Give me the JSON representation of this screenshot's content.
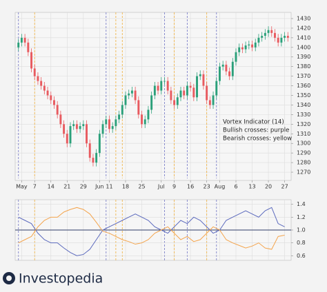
{
  "chart_data": [
    {
      "type": "candlestick",
      "annotation": [
        "Vortex Indicator (14)",
        "Bullish crosses: purple",
        "Bearish crosses: yellow"
      ],
      "x": [
        0,
        1,
        2,
        3,
        4,
        5,
        6,
        7,
        8,
        9,
        10,
        11,
        12,
        13,
        14,
        15,
        16,
        17,
        18,
        19,
        20,
        21,
        22,
        23,
        24,
        25,
        26,
        27,
        28,
        29,
        30,
        31,
        32,
        33,
        34,
        35,
        36,
        37,
        38,
        39,
        40,
        41,
        42,
        43,
        44,
        45,
        46,
        47,
        48,
        49,
        50,
        51,
        52,
        53,
        54,
        55,
        56,
        57,
        58,
        59,
        60,
        61,
        62,
        63,
        64,
        65,
        66,
        67,
        68,
        69,
        70,
        71,
        72,
        73,
        74,
        75,
        76,
        77,
        78,
        79,
        80,
        81,
        82,
        83
      ],
      "open": [
        1400,
        1405,
        1410,
        1405,
        1395,
        1378,
        1370,
        1365,
        1360,
        1355,
        1350,
        1345,
        1340,
        1330,
        1320,
        1310,
        1300,
        1318,
        1320,
        1315,
        1318,
        1320,
        1300,
        1285,
        1280,
        1290,
        1310,
        1320,
        1325,
        1315,
        1318,
        1325,
        1330,
        1340,
        1350,
        1352,
        1355,
        1345,
        1330,
        1320,
        1325,
        1335,
        1350,
        1360,
        1355,
        1365,
        1365,
        1355,
        1345,
        1340,
        1348,
        1355,
        1350,
        1360,
        1358,
        1348,
        1370,
        1372,
        1360,
        1345,
        1340,
        1350,
        1365,
        1380,
        1382,
        1375,
        1370,
        1385,
        1395,
        1400,
        1398,
        1402,
        1403,
        1400,
        1405,
        1410,
        1412,
        1415,
        1418,
        1415,
        1410,
        1405,
        1410,
        1412
      ],
      "high": [
        1409,
        1414,
        1414,
        1409,
        1399,
        1382,
        1374,
        1369,
        1364,
        1359,
        1354,
        1349,
        1344,
        1334,
        1324,
        1314,
        1322,
        1324,
        1324,
        1322,
        1324,
        1324,
        1304,
        1289,
        1294,
        1314,
        1324,
        1329,
        1329,
        1322,
        1329,
        1334,
        1344,
        1354,
        1356,
        1359,
        1359,
        1349,
        1334,
        1329,
        1339,
        1354,
        1364,
        1364,
        1369,
        1369,
        1369,
        1359,
        1349,
        1352,
        1359,
        1359,
        1364,
        1364,
        1362,
        1374,
        1376,
        1376,
        1364,
        1349,
        1354,
        1369,
        1384,
        1386,
        1386,
        1379,
        1389,
        1399,
        1404,
        1404,
        1406,
        1407,
        1407,
        1409,
        1414,
        1416,
        1419,
        1422,
        1422,
        1419,
        1414,
        1414,
        1416,
        1416
      ],
      "low": [
        1396,
        1401,
        1401,
        1391,
        1374,
        1366,
        1361,
        1356,
        1351,
        1346,
        1341,
        1336,
        1326,
        1316,
        1306,
        1296,
        1296,
        1314,
        1311,
        1311,
        1314,
        1296,
        1281,
        1276,
        1276,
        1286,
        1306,
        1316,
        1311,
        1311,
        1314,
        1321,
        1326,
        1336,
        1346,
        1348,
        1341,
        1326,
        1316,
        1316,
        1321,
        1331,
        1346,
        1351,
        1351,
        1361,
        1351,
        1341,
        1336,
        1336,
        1344,
        1346,
        1346,
        1354,
        1344,
        1344,
        1366,
        1356,
        1341,
        1336,
        1336,
        1346,
        1361,
        1376,
        1371,
        1366,
        1366,
        1381,
        1391,
        1394,
        1394,
        1398,
        1396,
        1396,
        1401,
        1406,
        1408,
        1411,
        1411,
        1406,
        1401,
        1401,
        1406,
        1406
      ],
      "close": [
        1405,
        1410,
        1405,
        1395,
        1378,
        1370,
        1365,
        1360,
        1355,
        1350,
        1345,
        1340,
        1330,
        1320,
        1310,
        1300,
        1318,
        1320,
        1315,
        1318,
        1320,
        1300,
        1285,
        1280,
        1290,
        1310,
        1320,
        1325,
        1315,
        1318,
        1325,
        1330,
        1340,
        1350,
        1352,
        1355,
        1345,
        1330,
        1320,
        1325,
        1335,
        1350,
        1360,
        1355,
        1365,
        1365,
        1355,
        1345,
        1340,
        1348,
        1355,
        1350,
        1360,
        1358,
        1348,
        1370,
        1372,
        1360,
        1345,
        1340,
        1350,
        1365,
        1380,
        1382,
        1375,
        1370,
        1385,
        1395,
        1400,
        1398,
        1402,
        1403,
        1400,
        1405,
        1410,
        1412,
        1415,
        1418,
        1415,
        1410,
        1405,
        1410,
        1412,
        1410
      ],
      "up_color": "#2ba07a",
      "down_color": "#e85a5f",
      "bullish_crosses": [
        0,
        27,
        45,
        52,
        61
      ],
      "bullish_color": "#7d80c9",
      "bearish_crosses": [
        5,
        30,
        32,
        48,
        58
      ],
      "bearish_color": "#f0b54a",
      "xlim": [
        -1,
        84
      ],
      "xticks": [
        {
          "value": 1,
          "label": "May"
        },
        {
          "value": 5,
          "label": "7"
        },
        {
          "value": 10,
          "label": "14"
        },
        {
          "value": 15,
          "label": "21"
        },
        {
          "value": 20,
          "label": "29"
        },
        {
          "value": 25,
          "label": "Jun"
        },
        {
          "value": 28,
          "label": "11"
        },
        {
          "value": 33,
          "label": "18"
        },
        {
          "value": 38,
          "label": "25"
        },
        {
          "value": 44,
          "label": "Jul"
        },
        {
          "value": 48,
          "label": "9"
        },
        {
          "value": 53,
          "label": "16"
        },
        {
          "value": 58,
          "label": "23"
        },
        {
          "value": 62,
          "label": "Aug"
        },
        {
          "value": 67,
          "label": "6"
        },
        {
          "value": 72,
          "label": "13"
        },
        {
          "value": 77,
          "label": "20"
        },
        {
          "value": 82,
          "label": "27"
        }
      ],
      "ylim": [
        1265,
        1435
      ],
      "yticks": [
        1270,
        1280,
        1290,
        1300,
        1310,
        1320,
        1330,
        1340,
        1350,
        1360,
        1370,
        1380,
        1390,
        1400,
        1410,
        1420,
        1430
      ],
      "grid": true
    },
    {
      "type": "line",
      "x": [
        0,
        2,
        4,
        6,
        8,
        10,
        12,
        14,
        16,
        18,
        20,
        22,
        24,
        26,
        28,
        30,
        32,
        34,
        36,
        38,
        40,
        42,
        44,
        46,
        48,
        50,
        52,
        54,
        56,
        58,
        60,
        62,
        64,
        66,
        68,
        70,
        72,
        74,
        76,
        78,
        80,
        82
      ],
      "series": [
        {
          "color": "#5b69bd",
          "values": [
            1.2,
            1.15,
            1.1,
            0.95,
            0.85,
            0.8,
            0.8,
            0.72,
            0.65,
            0.6,
            0.62,
            0.7,
            0.85,
            1.0,
            1.05,
            1.1,
            1.15,
            1.2,
            1.25,
            1.2,
            1.15,
            1.05,
            1.0,
            0.95,
            1.05,
            1.15,
            1.1,
            1.2,
            1.15,
            1.05,
            0.95,
            1.0,
            1.15,
            1.2,
            1.25,
            1.3,
            1.25,
            1.2,
            1.3,
            1.35,
            1.1,
            1.05
          ]
        },
        {
          "color": "#f4a44c",
          "values": [
            0.8,
            0.85,
            0.9,
            1.05,
            1.15,
            1.2,
            1.2,
            1.28,
            1.32,
            1.35,
            1.32,
            1.25,
            1.12,
            0.98,
            0.95,
            0.9,
            0.85,
            0.82,
            0.78,
            0.8,
            0.85,
            0.95,
            1.0,
            1.05,
            0.95,
            0.85,
            0.9,
            0.82,
            0.85,
            0.95,
            1.05,
            1.0,
            0.85,
            0.8,
            0.76,
            0.72,
            0.75,
            0.8,
            0.72,
            0.7,
            0.9,
            0.92
          ]
        }
      ],
      "reference_line": 1,
      "xlim": [
        -1,
        84
      ],
      "ylim": [
        0.55,
        1.45
      ],
      "yticks": [
        0.6,
        0.8,
        {
          "value": 1,
          "label": "1.0"
        },
        1.2,
        1.4
      ],
      "grid": true
    },
    {
      "type": "logo",
      "title": "Investopedia"
    }
  ]
}
